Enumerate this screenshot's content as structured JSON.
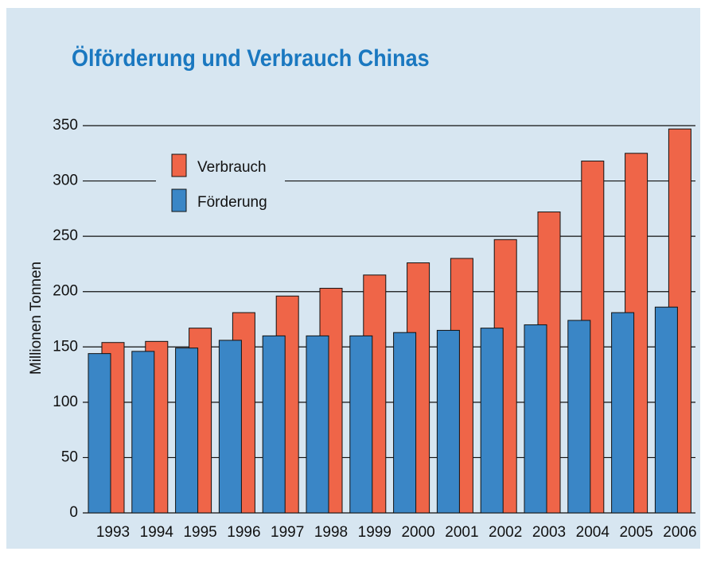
{
  "chart_data": {
    "type": "bar",
    "title": "Ölförderung und Verbrauch Chinas",
    "y_label": "Millionen Tonnen",
    "categories": [
      "1993",
      "1994",
      "1995",
      "1996",
      "1997",
      "1998",
      "1999",
      "2000",
      "2001",
      "2002",
      "2003",
      "2004",
      "2005",
      "2006"
    ],
    "series": [
      {
        "name": "Verbrauch",
        "color": "#ef6548",
        "values": [
          154,
          155,
          167,
          181,
          196,
          203,
          215,
          226,
          230,
          247,
          272,
          318,
          325,
          347
        ]
      },
      {
        "name": "Förderung",
        "color": "#3a86c6",
        "values": [
          144,
          146,
          149,
          156,
          160,
          160,
          160,
          163,
          165,
          167,
          170,
          174,
          181,
          186
        ]
      }
    ],
    "ylim": [
      0,
      350
    ],
    "yticks": [
      0,
      50,
      100,
      150,
      200,
      250,
      300,
      350
    ],
    "grid": true
  }
}
